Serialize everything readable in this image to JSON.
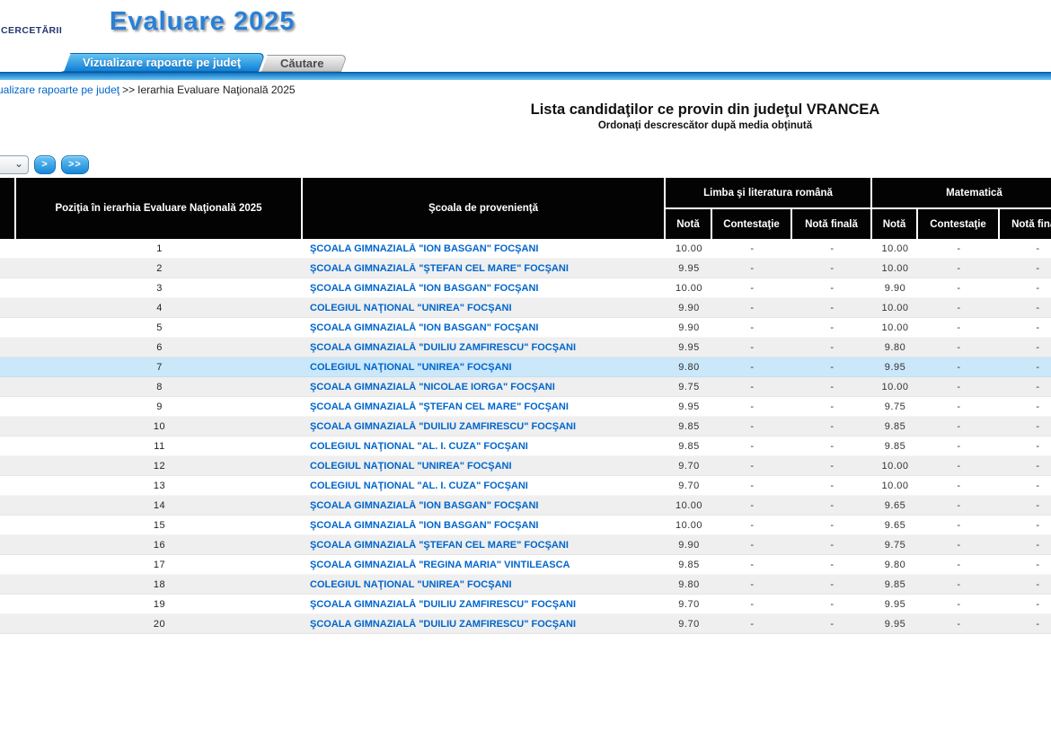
{
  "header": {
    "logo_text": "CERCETĂRII",
    "app_title": "Evaluare 2025"
  },
  "tabs": [
    {
      "label": "Vizualizare rapoarte pe judeţ",
      "active": true
    },
    {
      "label": "Căutare",
      "active": false
    }
  ],
  "breadcrumb": {
    "link": "ualizare rapoarte pe judeţ",
    "separator": ">>",
    "current": "Ierarhia Evaluare Naţională 2025"
  },
  "page": {
    "title": "Lista candidaţilor ce provin din judeţul VRANCEA",
    "subtitle": "Ordonaţi descrescător după media obţinută"
  },
  "pagination": {
    "next_label": ">",
    "last_label": ">>"
  },
  "icons": {
    "select_chevron": "⌄"
  },
  "colors": {
    "accent_blue": "#1787d8",
    "link_blue": "#0066cc",
    "header_bg": "#030303",
    "row_alt": "#efefef",
    "row_highlight": "#cbe7fa"
  },
  "table": {
    "columns": {
      "position": "Poziţia în ierarhia Evaluare Naţională 2025",
      "school": "Şcoala de provenienţă",
      "romanian_group": "Limba şi literatura română",
      "math_group": "Matematică",
      "grade": "Notă",
      "contestation": "Contestaţie",
      "final_grade": "Notă finală"
    },
    "highlighted_row": 7,
    "rows": [
      {
        "position": "1",
        "school": "ŞCOALA GIMNAZIALĂ \"ION BASGAN\" FOCŞANI",
        "ro_grade": "10.00",
        "ro_contest": "-",
        "ro_final": "-",
        "math_grade": "10.00",
        "math_contest": "-",
        "math_final": "-"
      },
      {
        "position": "2",
        "school": "ŞCOALA GIMNAZIALĂ \"ŞTEFAN CEL MARE\" FOCŞANI",
        "ro_grade": "9.95",
        "ro_contest": "-",
        "ro_final": "-",
        "math_grade": "10.00",
        "math_contest": "-",
        "math_final": "-"
      },
      {
        "position": "3",
        "school": "ŞCOALA GIMNAZIALĂ \"ION BASGAN\" FOCŞANI",
        "ro_grade": "10.00",
        "ro_contest": "-",
        "ro_final": "-",
        "math_grade": "9.90",
        "math_contest": "-",
        "math_final": "-"
      },
      {
        "position": "4",
        "school": "COLEGIUL NAŢIONAL \"UNIREA\" FOCŞANI",
        "ro_grade": "9.90",
        "ro_contest": "-",
        "ro_final": "-",
        "math_grade": "10.00",
        "math_contest": "-",
        "math_final": "-"
      },
      {
        "position": "5",
        "school": "ŞCOALA GIMNAZIALĂ \"ION BASGAN\" FOCŞANI",
        "ro_grade": "9.90",
        "ro_contest": "-",
        "ro_final": "-",
        "math_grade": "10.00",
        "math_contest": "-",
        "math_final": "-"
      },
      {
        "position": "6",
        "school": "ŞCOALA GIMNAZIALĂ \"DUILIU ZAMFIRESCU\" FOCŞANI",
        "ro_grade": "9.95",
        "ro_contest": "-",
        "ro_final": "-",
        "math_grade": "9.80",
        "math_contest": "-",
        "math_final": "-"
      },
      {
        "position": "7",
        "school": "COLEGIUL NAŢIONAL \"UNIREA\" FOCŞANI",
        "ro_grade": "9.80",
        "ro_contest": "-",
        "ro_final": "-",
        "math_grade": "9.95",
        "math_contest": "-",
        "math_final": "-"
      },
      {
        "position": "8",
        "school": "ŞCOALA GIMNAZIALĂ \"NICOLAE IORGA\" FOCŞANI",
        "ro_grade": "9.75",
        "ro_contest": "-",
        "ro_final": "-",
        "math_grade": "10.00",
        "math_contest": "-",
        "math_final": "-"
      },
      {
        "position": "9",
        "school": "ŞCOALA GIMNAZIALĂ \"ŞTEFAN CEL MARE\" FOCŞANI",
        "ro_grade": "9.95",
        "ro_contest": "-",
        "ro_final": "-",
        "math_grade": "9.75",
        "math_contest": "-",
        "math_final": "-"
      },
      {
        "position": "10",
        "school": "ŞCOALA GIMNAZIALĂ \"DUILIU ZAMFIRESCU\" FOCŞANI",
        "ro_grade": "9.85",
        "ro_contest": "-",
        "ro_final": "-",
        "math_grade": "9.85",
        "math_contest": "-",
        "math_final": "-"
      },
      {
        "position": "11",
        "school": "COLEGIUL NAŢIONAL \"AL. I. CUZA\" FOCŞANI",
        "ro_grade": "9.85",
        "ro_contest": "-",
        "ro_final": "-",
        "math_grade": "9.85",
        "math_contest": "-",
        "math_final": "-"
      },
      {
        "position": "12",
        "school": "COLEGIUL NAŢIONAL \"UNIREA\" FOCŞANI",
        "ro_grade": "9.70",
        "ro_contest": "-",
        "ro_final": "-",
        "math_grade": "10.00",
        "math_contest": "-",
        "math_final": "-"
      },
      {
        "position": "13",
        "school": "COLEGIUL NAŢIONAL \"AL. I. CUZA\" FOCŞANI",
        "ro_grade": "9.70",
        "ro_contest": "-",
        "ro_final": "-",
        "math_grade": "10.00",
        "math_contest": "-",
        "math_final": "-"
      },
      {
        "position": "14",
        "school": "ŞCOALA GIMNAZIALĂ \"ION BASGAN\" FOCŞANI",
        "ro_grade": "10.00",
        "ro_contest": "-",
        "ro_final": "-",
        "math_grade": "9.65",
        "math_contest": "-",
        "math_final": "-"
      },
      {
        "position": "15",
        "school": "ŞCOALA GIMNAZIALĂ \"ION BASGAN\" FOCŞANI",
        "ro_grade": "10.00",
        "ro_contest": "-",
        "ro_final": "-",
        "math_grade": "9.65",
        "math_contest": "-",
        "math_final": "-"
      },
      {
        "position": "16",
        "school": "ŞCOALA GIMNAZIALĂ \"ŞTEFAN CEL MARE\" FOCŞANI",
        "ro_grade": "9.90",
        "ro_contest": "-",
        "ro_final": "-",
        "math_grade": "9.75",
        "math_contest": "-",
        "math_final": "-"
      },
      {
        "position": "17",
        "school": "ŞCOALA GIMNAZIALĂ \"REGINA MARIA\" VINTILEASCA",
        "ro_grade": "9.85",
        "ro_contest": "-",
        "ro_final": "-",
        "math_grade": "9.80",
        "math_contest": "-",
        "math_final": "-"
      },
      {
        "position": "18",
        "school": "COLEGIUL NAŢIONAL \"UNIREA\" FOCŞANI",
        "ro_grade": "9.80",
        "ro_contest": "-",
        "ro_final": "-",
        "math_grade": "9.85",
        "math_contest": "-",
        "math_final": "-"
      },
      {
        "position": "19",
        "school": "ŞCOALA GIMNAZIALĂ \"DUILIU ZAMFIRESCU\" FOCŞANI",
        "ro_grade": "9.70",
        "ro_contest": "-",
        "ro_final": "-",
        "math_grade": "9.95",
        "math_contest": "-",
        "math_final": "-"
      },
      {
        "position": "20",
        "school": "ŞCOALA GIMNAZIALĂ \"DUILIU ZAMFIRESCU\" FOCŞANI",
        "ro_grade": "9.70",
        "ro_contest": "-",
        "ro_final": "-",
        "math_grade": "9.95",
        "math_contest": "-",
        "math_final": "-"
      }
    ]
  }
}
